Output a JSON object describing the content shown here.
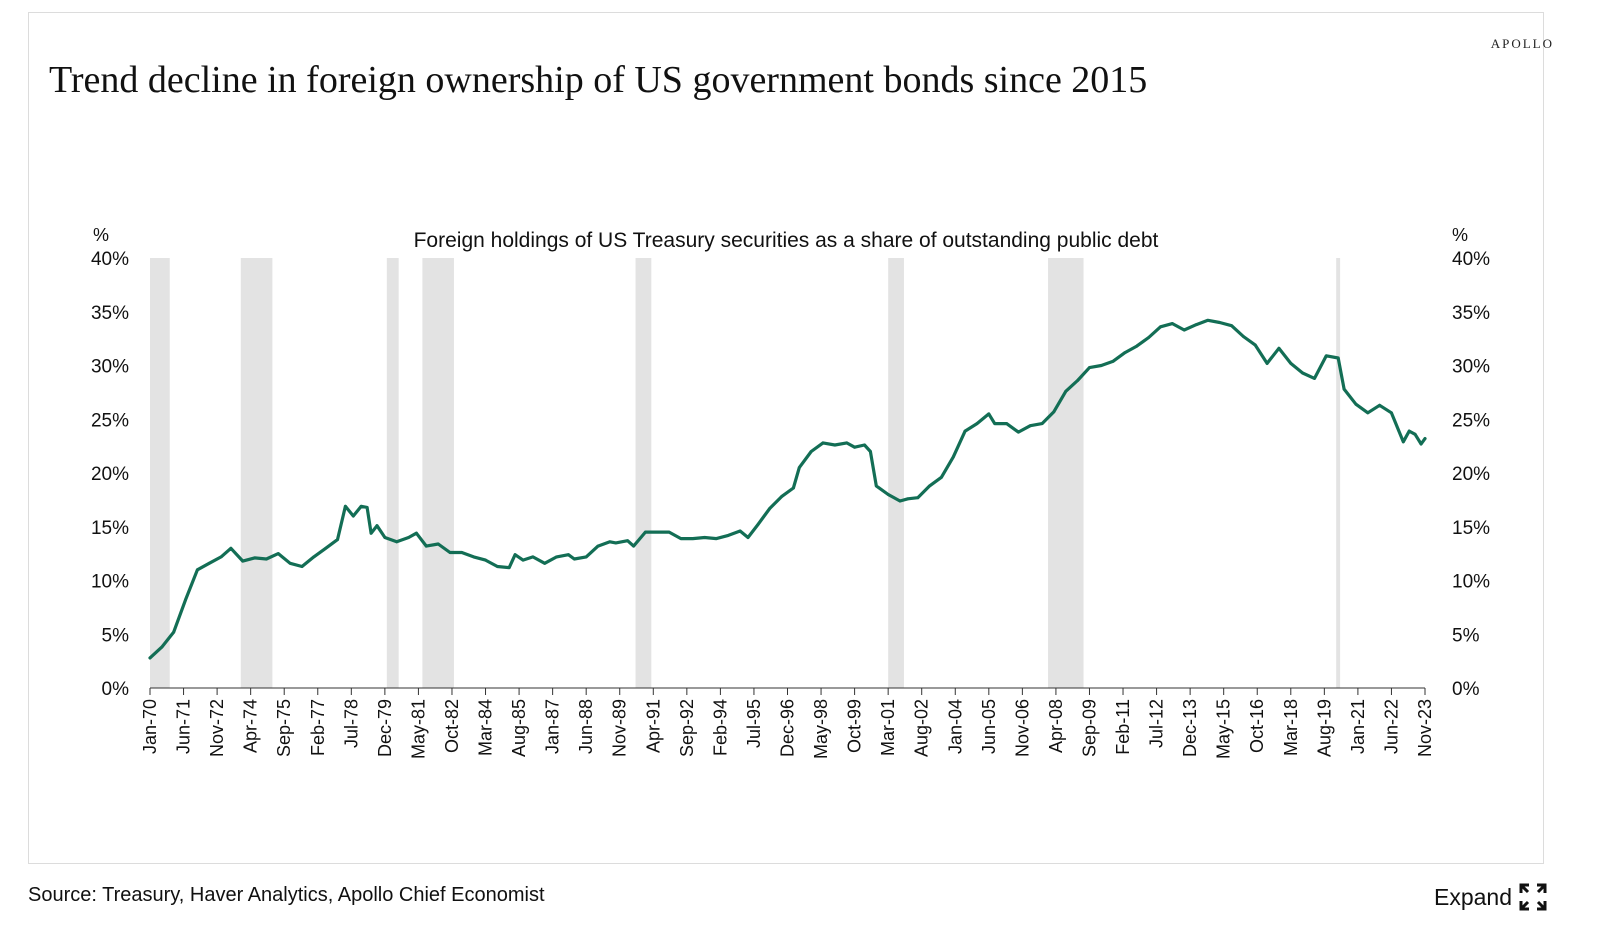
{
  "brand": "APOLLO",
  "title": "Trend decline in foreign ownership of US government bonds since 2015",
  "footer": {
    "source": "Source: Treasury, Haver Analytics, Apollo Chief Economist",
    "expand_label": "Expand",
    "expand_icon": "expand-arrows-icon"
  },
  "colors": {
    "line": "#136e55",
    "recession": "#e3e3e3",
    "axis": "#333333"
  },
  "chart_data": {
    "type": "line",
    "subtitle": "Foreign holdings of US Treasury securities as a share of outstanding public debt",
    "ylabel_left": "%",
    "ylabel_right": "%",
    "ylim": [
      0,
      40
    ],
    "yticks": [
      "0%",
      "5%",
      "10%",
      "15%",
      "20%",
      "25%",
      "30%",
      "35%",
      "40%"
    ],
    "x_range": [
      "1970-01",
      "2023-11"
    ],
    "xticks": [
      "Jan-70",
      "Jun-71",
      "Nov-72",
      "Apr-74",
      "Sep-75",
      "Feb-77",
      "Jul-78",
      "Dec-79",
      "May-81",
      "Oct-82",
      "Mar-84",
      "Aug-85",
      "Jan-87",
      "Jun-88",
      "Nov-89",
      "Apr-91",
      "Sep-92",
      "Feb-94",
      "Jul-95",
      "Dec-96",
      "May-98",
      "Oct-99",
      "Mar-01",
      "Aug-02",
      "Jan-04",
      "Jun-05",
      "Nov-06",
      "Apr-08",
      "Sep-09",
      "Feb-11",
      "Jul-12",
      "Dec-13",
      "May-15",
      "Oct-16",
      "Mar-18",
      "Aug-19",
      "Jan-21",
      "Jun-22",
      "Nov-23"
    ],
    "recessions": [
      [
        "1970-01",
        "1970-11"
      ],
      [
        "1973-11",
        "1975-03"
      ],
      [
        "1980-01",
        "1980-07"
      ],
      [
        "1981-07",
        "1982-11"
      ],
      [
        "1990-07",
        "1991-03"
      ],
      [
        "2001-03",
        "2001-11"
      ],
      [
        "2007-12",
        "2009-06"
      ],
      [
        "2020-02",
        "2020-04"
      ]
    ],
    "grid": false,
    "series": [
      {
        "values": [
          [
            "1970-01",
            2.8
          ],
          [
            "1970-07",
            3.8
          ],
          [
            "1971-01",
            5.2
          ],
          [
            "1971-07",
            8.2
          ],
          [
            "1972-01",
            11.0
          ],
          [
            "1972-07",
            11.6
          ],
          [
            "1973-01",
            12.2
          ],
          [
            "1973-06",
            13.0
          ],
          [
            "1973-12",
            11.8
          ],
          [
            "1974-06",
            12.1
          ],
          [
            "1974-12",
            12.0
          ],
          [
            "1975-06",
            12.5
          ],
          [
            "1975-12",
            11.6
          ],
          [
            "1976-06",
            11.3
          ],
          [
            "1976-12",
            12.2
          ],
          [
            "1977-06",
            13.0
          ],
          [
            "1977-12",
            13.8
          ],
          [
            "1978-04",
            16.9
          ],
          [
            "1978-08",
            16.0
          ],
          [
            "1978-12",
            16.9
          ],
          [
            "1979-03",
            16.8
          ],
          [
            "1979-05",
            14.4
          ],
          [
            "1979-08",
            15.1
          ],
          [
            "1979-12",
            14.0
          ],
          [
            "1980-06",
            13.6
          ],
          [
            "1980-12",
            14.0
          ],
          [
            "1981-04",
            14.4
          ],
          [
            "1981-09",
            13.2
          ],
          [
            "1982-03",
            13.4
          ],
          [
            "1982-09",
            12.6
          ],
          [
            "1983-03",
            12.6
          ],
          [
            "1983-09",
            12.2
          ],
          [
            "1984-03",
            11.9
          ],
          [
            "1984-09",
            11.3
          ],
          [
            "1985-03",
            11.2
          ],
          [
            "1985-06",
            12.4
          ],
          [
            "1985-10",
            11.9
          ],
          [
            "1986-03",
            12.2
          ],
          [
            "1986-09",
            11.6
          ],
          [
            "1987-03",
            12.2
          ],
          [
            "1987-09",
            12.4
          ],
          [
            "1987-12",
            12.0
          ],
          [
            "1988-06",
            12.2
          ],
          [
            "1988-12",
            13.2
          ],
          [
            "1989-06",
            13.6
          ],
          [
            "1989-09",
            13.5
          ],
          [
            "1990-03",
            13.7
          ],
          [
            "1990-06",
            13.2
          ],
          [
            "1990-12",
            14.5
          ],
          [
            "1991-06",
            14.5
          ],
          [
            "1991-12",
            14.5
          ],
          [
            "1992-06",
            13.9
          ],
          [
            "1992-12",
            13.9
          ],
          [
            "1993-06",
            14.0
          ],
          [
            "1993-12",
            13.9
          ],
          [
            "1994-06",
            14.2
          ],
          [
            "1994-12",
            14.6
          ],
          [
            "1995-04",
            14.0
          ],
          [
            "1995-09",
            15.2
          ],
          [
            "1996-03",
            16.7
          ],
          [
            "1996-09",
            17.8
          ],
          [
            "1997-03",
            18.6
          ],
          [
            "1997-06",
            20.5
          ],
          [
            "1997-12",
            22.0
          ],
          [
            "1998-06",
            22.8
          ],
          [
            "1998-12",
            22.6
          ],
          [
            "1999-06",
            22.8
          ],
          [
            "1999-10",
            22.4
          ],
          [
            "2000-03",
            22.6
          ],
          [
            "2000-06",
            22.0
          ],
          [
            "2000-09",
            18.8
          ],
          [
            "2001-03",
            18.0
          ],
          [
            "2001-09",
            17.4
          ],
          [
            "2002-01",
            17.6
          ],
          [
            "2002-06",
            17.7
          ],
          [
            "2002-12",
            18.8
          ],
          [
            "2003-06",
            19.6
          ],
          [
            "2003-12",
            21.5
          ],
          [
            "2004-06",
            23.9
          ],
          [
            "2004-12",
            24.6
          ],
          [
            "2005-06",
            25.5
          ],
          [
            "2005-09",
            24.6
          ],
          [
            "2006-03",
            24.6
          ],
          [
            "2006-09",
            23.8
          ],
          [
            "2007-03",
            24.4
          ],
          [
            "2007-09",
            24.6
          ],
          [
            "2008-03",
            25.7
          ],
          [
            "2008-09",
            27.6
          ],
          [
            "2009-03",
            28.6
          ],
          [
            "2009-09",
            29.8
          ],
          [
            "2010-03",
            30.0
          ],
          [
            "2010-09",
            30.4
          ],
          [
            "2011-03",
            31.2
          ],
          [
            "2011-09",
            31.8
          ],
          [
            "2012-03",
            32.6
          ],
          [
            "2012-09",
            33.6
          ],
          [
            "2013-03",
            33.9
          ],
          [
            "2013-09",
            33.3
          ],
          [
            "2014-03",
            33.8
          ],
          [
            "2014-09",
            34.2
          ],
          [
            "2015-03",
            34.0
          ],
          [
            "2015-09",
            33.7
          ],
          [
            "2016-03",
            32.7
          ],
          [
            "2016-09",
            31.9
          ],
          [
            "2017-03",
            30.2
          ],
          [
            "2017-09",
            31.6
          ],
          [
            "2018-03",
            30.2
          ],
          [
            "2018-09",
            29.3
          ],
          [
            "2019-03",
            28.8
          ],
          [
            "2019-09",
            30.9
          ],
          [
            "2020-03",
            30.7
          ],
          [
            "2020-06",
            27.8
          ],
          [
            "2020-12",
            26.4
          ],
          [
            "2021-06",
            25.6
          ],
          [
            "2021-12",
            26.3
          ],
          [
            "2022-06",
            25.6
          ],
          [
            "2022-12",
            22.9
          ],
          [
            "2023-03",
            23.9
          ],
          [
            "2023-06",
            23.6
          ],
          [
            "2023-09",
            22.7
          ],
          [
            "2023-11",
            23.2
          ]
        ]
      }
    ]
  }
}
